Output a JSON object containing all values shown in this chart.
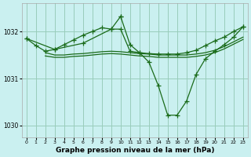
{
  "title": "Graphe pression niveau de la mer (hPa)",
  "bg": "#caf0f0",
  "grid_color": "#99ccbb",
  "lc": "#1a6b1a",
  "xlim": [
    -0.5,
    23.5
  ],
  "ylim": [
    1029.75,
    1032.6
  ],
  "yticks": [
    1030,
    1031,
    1032
  ],
  "xticks": [
    0,
    1,
    2,
    3,
    4,
    5,
    6,
    7,
    8,
    9,
    10,
    11,
    12,
    13,
    14,
    15,
    16,
    17,
    18,
    19,
    20,
    21,
    22,
    23
  ],
  "series": [
    {
      "x": [
        0,
        1,
        2,
        3,
        4,
        5,
        6,
        7,
        8,
        9,
        10,
        11,
        12,
        13,
        14,
        15,
        16,
        17,
        18,
        19,
        20,
        21,
        22,
        23
      ],
      "y": [
        1031.85,
        1031.7,
        1031.58,
        1031.62,
        1031.72,
        1031.82,
        1031.92,
        1032.0,
        1032.08,
        1032.05,
        1032.05,
        1031.58,
        1031.55,
        1031.53,
        1031.52,
        1031.52,
        1031.52,
        1031.55,
        1031.6,
        1031.7,
        1031.8,
        1031.88,
        1032.0,
        1032.1
      ],
      "marker": true
    },
    {
      "x": [
        2,
        3,
        4,
        5,
        6,
        7,
        8,
        9,
        10,
        11,
        12,
        13,
        14,
        15,
        16,
        17,
        18,
        19,
        20,
        21,
        22,
        23
      ],
      "y": [
        1031.55,
        1031.5,
        1031.5,
        1031.52,
        1031.53,
        1031.55,
        1031.57,
        1031.58,
        1031.57,
        1031.55,
        1031.53,
        1031.52,
        1031.5,
        1031.5,
        1031.5,
        1031.5,
        1031.52,
        1031.55,
        1031.6,
        1031.68,
        1031.78,
        1031.88
      ],
      "marker": false
    },
    {
      "x": [
        2,
        3,
        4,
        5,
        6,
        7,
        8,
        9,
        10,
        11,
        12,
        13,
        14,
        15,
        16,
        17,
        18,
        19,
        20,
        21,
        22,
        23
      ],
      "y": [
        1031.48,
        1031.45,
        1031.45,
        1031.47,
        1031.48,
        1031.5,
        1031.52,
        1031.53,
        1031.52,
        1031.5,
        1031.48,
        1031.47,
        1031.45,
        1031.45,
        1031.45,
        1031.45,
        1031.47,
        1031.5,
        1031.55,
        1031.63,
        1031.73,
        1031.83
      ],
      "marker": false
    },
    {
      "x": [
        0,
        3,
        6,
        9,
        10
      ],
      "y": [
        1031.85,
        1031.62,
        1031.75,
        1032.05,
        1032.32
      ],
      "marker": true
    },
    {
      "x": [
        10,
        11,
        12,
        13,
        14,
        15,
        16,
        17,
        18,
        19,
        20,
        21,
        22,
        23
      ],
      "y": [
        1032.32,
        1031.72,
        1031.55,
        1031.35,
        1030.85,
        1030.22,
        1030.22,
        1030.52,
        1031.08,
        1031.42,
        1031.58,
        1031.72,
        1031.88,
        1032.1
      ],
      "marker": true
    }
  ]
}
